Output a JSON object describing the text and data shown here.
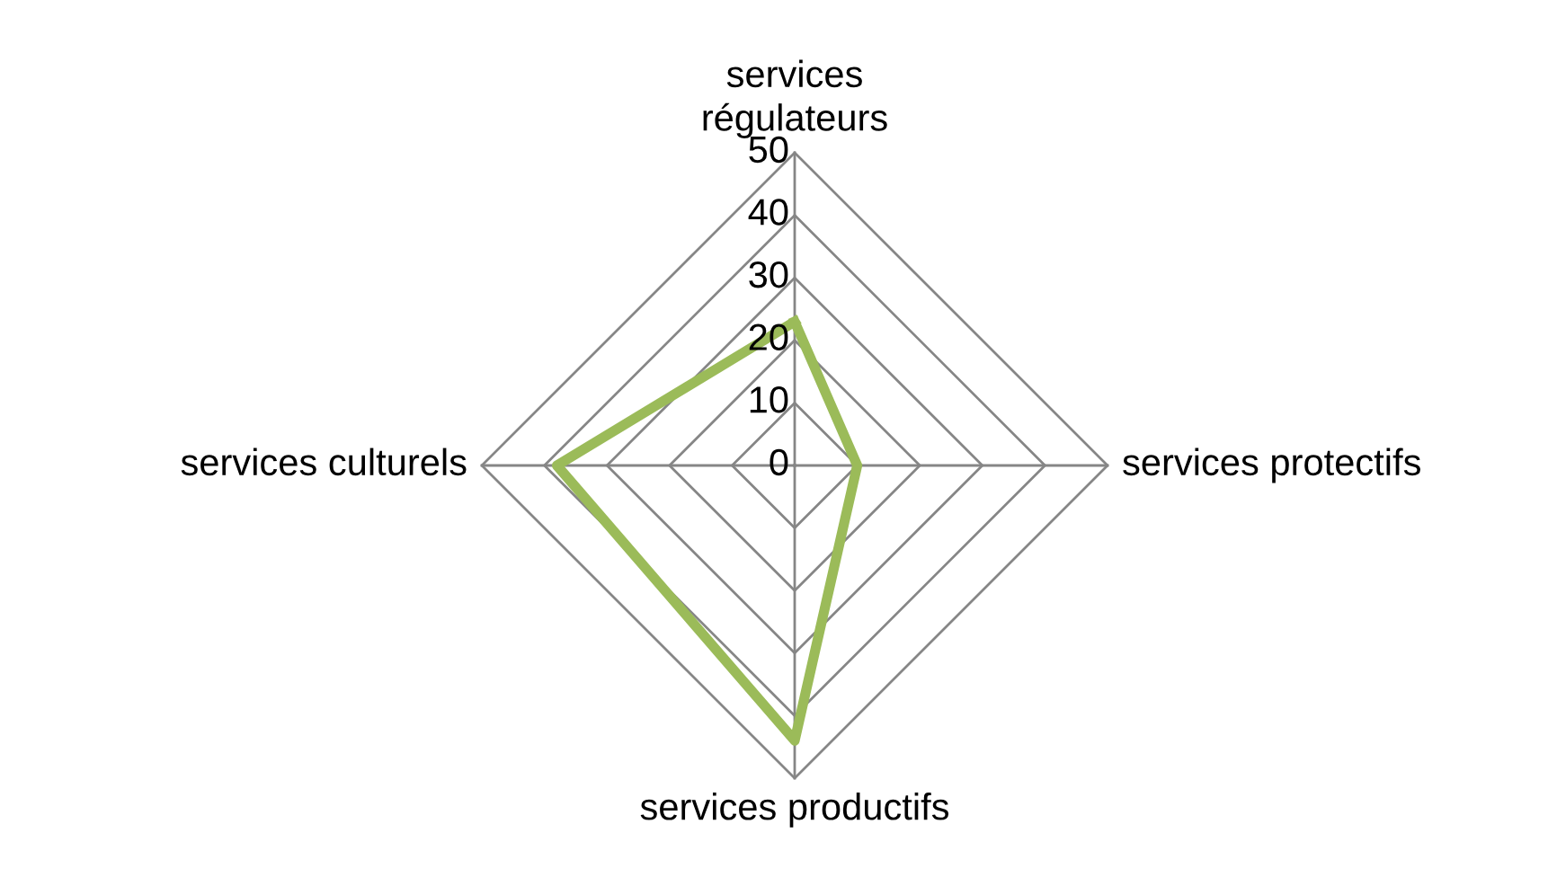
{
  "chart_data": {
    "type": "radar",
    "categories": [
      "services régulateurs",
      "services protectifs",
      "services productifs",
      "services culturels"
    ],
    "series": [
      {
        "color": "#9bbb59",
        "values": [
          23,
          10,
          44,
          38
        ]
      }
    ],
    "ylim": [
      0,
      50
    ],
    "yticks": [
      0,
      10,
      20,
      30,
      40,
      50
    ],
    "grid": true,
    "marker": "none",
    "line_style": "solid"
  }
}
